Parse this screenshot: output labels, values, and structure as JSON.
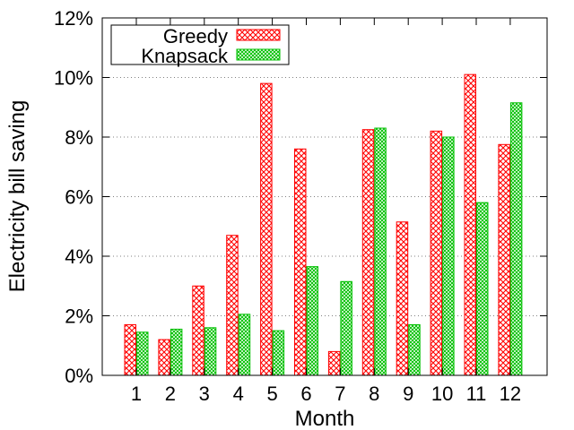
{
  "chart_data": {
    "type": "bar",
    "xlabel": "Month",
    "ylabel": "Electricity bill saving",
    "categories": [
      "1",
      "2",
      "3",
      "4",
      "5",
      "6",
      "7",
      "8",
      "9",
      "10",
      "11",
      "12"
    ],
    "ylim": [
      0,
      12
    ],
    "yticks": [
      "0%",
      "2%",
      "4%",
      "6%",
      "8%",
      "10%",
      "12%"
    ],
    "grid": "horizontal dotted",
    "legend_position": "top-left",
    "series": [
      {
        "name": "Greedy",
        "color": "#ff0000",
        "pattern": "crosshatch",
        "values": [
          1.7,
          1.2,
          3.0,
          4.7,
          9.8,
          7.6,
          0.8,
          8.25,
          5.15,
          8.2,
          10.1,
          7.75
        ]
      },
      {
        "name": "Knapsack",
        "color": "#00c000",
        "pattern": "crosshatch",
        "values": [
          1.45,
          1.55,
          1.6,
          2.05,
          1.5,
          3.65,
          3.15,
          8.3,
          1.7,
          8.0,
          5.8,
          9.15
        ]
      }
    ]
  }
}
